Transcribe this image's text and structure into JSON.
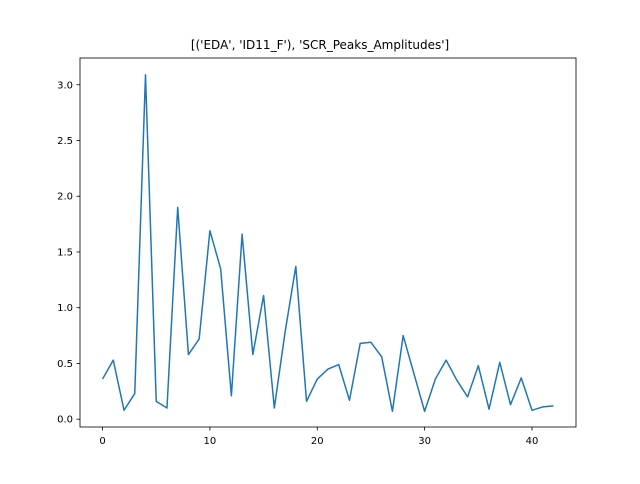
{
  "chart_data": {
    "type": "line",
    "title": "[('EDA', 'ID11_F'), 'SCR_Peaks_Amplitudes']",
    "xlabel": "",
    "ylabel": "",
    "xlim": [
      -2.1,
      44.1
    ],
    "ylim": [
      -0.07,
      3.24
    ],
    "xticks": [
      0,
      10,
      20,
      30,
      40
    ],
    "xtick_labels": [
      "0",
      "10",
      "20",
      "30",
      "40"
    ],
    "yticks": [
      0.0,
      0.5,
      1.0,
      1.5,
      2.0,
      2.5,
      3.0
    ],
    "ytick_labels": [
      "0.0",
      "0.5",
      "1.0",
      "1.5",
      "2.0",
      "2.5",
      "3.0"
    ],
    "grid": false,
    "series": [
      {
        "color": "#1f77b4",
        "x": [
          0,
          1,
          2,
          3,
          4,
          5,
          6,
          7,
          8,
          9,
          10,
          11,
          12,
          13,
          14,
          15,
          16,
          17,
          18,
          19,
          20,
          21,
          22,
          23,
          24,
          25,
          26,
          27,
          28,
          29,
          30,
          31,
          32,
          33,
          34,
          35,
          36,
          37,
          38,
          39,
          40,
          41,
          42
        ],
        "values": [
          0.36,
          0.53,
          0.08,
          0.23,
          3.09,
          0.16,
          0.1,
          1.9,
          0.58,
          0.72,
          1.69,
          1.35,
          0.21,
          1.66,
          0.58,
          1.11,
          0.1,
          0.78,
          1.37,
          0.16,
          0.36,
          0.45,
          0.49,
          0.17,
          0.68,
          0.69,
          0.56,
          0.07,
          0.75,
          0.41,
          0.07,
          0.36,
          0.53,
          0.35,
          0.2,
          0.48,
          0.09,
          0.51,
          0.13,
          0.37,
          0.08,
          0.11,
          0.12
        ]
      }
    ]
  }
}
